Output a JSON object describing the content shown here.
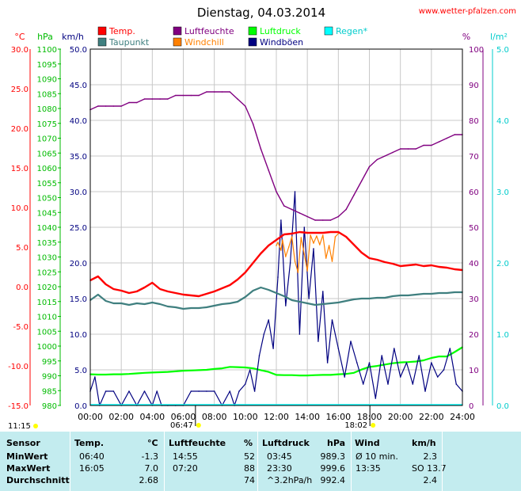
{
  "header": {
    "title": "Dienstag, 04.03.2014",
    "site": "www.wetter-pfalzen.com"
  },
  "colors": {
    "temp": "#ff0000",
    "humidity": "#800080",
    "pressure": "#00ff00",
    "rain": "#00ffff",
    "dewpoint": "#3f7f7f",
    "windchill": "#ff8000",
    "gusts": "#000080",
    "wind": "#000080",
    "sun_marker": "#ffff00"
  },
  "chart_data": {
    "type": "line",
    "title": "Dienstag, 04.03.2014",
    "xlim": [
      0,
      24
    ],
    "x_ticks": [
      "00:00",
      "02:00",
      "04:00",
      "06:00",
      "08:00",
      "10:00",
      "12:00",
      "14:00",
      "16:00",
      "18:00",
      "20:00",
      "22:00",
      "24:00"
    ],
    "grid": true,
    "axes": {
      "temp": {
        "unit": "°C",
        "range": [
          -15,
          30
        ],
        "ticks": [
          "30.0",
          "25.0",
          "20.0",
          "15.0",
          "10.0",
          "5.0",
          "0.0",
          "-5.0",
          "-10.0",
          "-15.0"
        ]
      },
      "pressure": {
        "unit": "hPa",
        "range": [
          980,
          1100
        ],
        "step": 5
      },
      "wind": {
        "unit": "km/h",
        "range": [
          0,
          50
        ],
        "ticks": [
          "50.0",
          "45.0",
          "40.0",
          "35.0",
          "30.0",
          "25.0",
          "20.0",
          "15.0",
          "10.0",
          "5.0",
          "0.0"
        ]
      },
      "humidity": {
        "unit": "%",
        "range": [
          0,
          100
        ],
        "ticks": [
          "100",
          "90",
          "80",
          "70",
          "60",
          "50",
          "40",
          "30",
          "20",
          "10",
          "0"
        ]
      },
      "rain": {
        "unit": "l/m²",
        "range": [
          0,
          5
        ],
        "ticks": [
          "5.0",
          "4.0",
          "3.0",
          "2.0",
          "1.0",
          "0.0"
        ]
      }
    },
    "legend": [
      {
        "key": "temp",
        "label": "Temp."
      },
      {
        "key": "humidity",
        "label": "Luftfeuchte"
      },
      {
        "key": "pressure",
        "label": "Luftdruck"
      },
      {
        "key": "rain",
        "label": "Regen*"
      },
      {
        "key": "dewpoint",
        "label": "Taupunkt"
      },
      {
        "key": "windchill",
        "label": "Windchill"
      },
      {
        "key": "gusts",
        "label": "Windböen"
      }
    ],
    "sun": {
      "sunrise": "06:47",
      "sunset": "18:02",
      "sunshine": "11:15"
    },
    "series": [
      {
        "name": "Temp.",
        "axis": "temp",
        "key": "temp",
        "x": [
          0,
          0.5,
          1,
          1.5,
          2,
          2.5,
          3,
          3.5,
          4,
          4.5,
          5,
          5.5,
          6,
          6.5,
          7,
          7.5,
          8,
          8.5,
          9,
          9.5,
          10,
          10.5,
          11,
          11.5,
          12,
          12.5,
          13,
          13.5,
          14,
          14.5,
          15,
          15.5,
          16,
          16.5,
          17,
          17.5,
          18,
          18.5,
          19,
          19.5,
          20,
          20.5,
          21,
          21.5,
          22,
          22.5,
          23,
          23.5,
          24
        ],
        "values": [
          0.8,
          1.3,
          0.3,
          -0.3,
          -0.5,
          -0.8,
          -0.6,
          -0.1,
          0.5,
          -0.3,
          -0.6,
          -0.8,
          -1.0,
          -1.1,
          -1.2,
          -0.9,
          -0.6,
          -0.2,
          0.2,
          0.9,
          1.8,
          3.0,
          4.2,
          5.2,
          5.9,
          6.6,
          6.7,
          6.9,
          6.8,
          6.8,
          6.8,
          6.9,
          6.9,
          6.3,
          5.3,
          4.3,
          3.6,
          3.4,
          3.1,
          2.9,
          2.6,
          2.7,
          2.8,
          2.6,
          2.7,
          2.5,
          2.4,
          2.2,
          2.1
        ]
      },
      {
        "name": "Taupunkt",
        "axis": "temp",
        "key": "dewpoint",
        "x": [
          0,
          0.5,
          1,
          1.5,
          2,
          2.5,
          3,
          3.5,
          4,
          4.5,
          5,
          5.5,
          6,
          6.5,
          7,
          7.5,
          8,
          8.5,
          9,
          9.5,
          10,
          10.5,
          11,
          11.5,
          12,
          12.5,
          13,
          13.5,
          14,
          14.5,
          15,
          15.5,
          16,
          16.5,
          17,
          17.5,
          18,
          18.5,
          19,
          19.5,
          20,
          20.5,
          21,
          21.5,
          22,
          22.5,
          23,
          23.5,
          24
        ],
        "values": [
          -1.7,
          -1.0,
          -1.8,
          -2.1,
          -2.1,
          -2.3,
          -2.1,
          -2.2,
          -2.0,
          -2.2,
          -2.5,
          -2.6,
          -2.8,
          -2.7,
          -2.7,
          -2.6,
          -2.4,
          -2.2,
          -2.1,
          -1.9,
          -1.3,
          -0.5,
          -0.1,
          -0.4,
          -0.8,
          -1.2,
          -1.7,
          -1.9,
          -2.1,
          -2.3,
          -2.2,
          -2.1,
          -2.0,
          -1.8,
          -1.6,
          -1.5,
          -1.5,
          -1.4,
          -1.4,
          -1.2,
          -1.1,
          -1.1,
          -1.0,
          -0.9,
          -0.9,
          -0.8,
          -0.8,
          -0.7,
          -0.7
        ]
      },
      {
        "name": "Windchill",
        "axis": "temp",
        "key": "windchill",
        "x": [
          12.0,
          12.1,
          12.3,
          12.4,
          12.6,
          12.8,
          13.0,
          13.2,
          13.4,
          13.6,
          13.8,
          14.0,
          14.2,
          14.4,
          14.6,
          14.8,
          15.0,
          15.2,
          15.4,
          15.6,
          15.8,
          16.0
        ],
        "values": [
          5.2,
          5.6,
          4.6,
          5.9,
          3.8,
          5.0,
          6.3,
          3.2,
          1.8,
          6.2,
          4.1,
          2.0,
          6.5,
          5.5,
          6.4,
          5.3,
          6.5,
          3.6,
          5.2,
          3.2,
          6.3,
          6.7
        ]
      },
      {
        "name": "Luftfeuchte",
        "axis": "humidity",
        "key": "humidity",
        "x": [
          0,
          0.5,
          1,
          1.5,
          2,
          2.5,
          3,
          3.5,
          4,
          4.5,
          5,
          5.5,
          6,
          6.5,
          7,
          7.5,
          8,
          8.5,
          9,
          9.5,
          10,
          10.5,
          11,
          11.5,
          12,
          12.5,
          13,
          13.5,
          14,
          14.5,
          15,
          15.5,
          16,
          16.5,
          17,
          17.5,
          18,
          18.5,
          19,
          19.5,
          20,
          20.5,
          21,
          21.5,
          22,
          22.5,
          23,
          23.5,
          24
        ],
        "values": [
          83,
          84,
          84,
          84,
          84,
          85,
          85,
          86,
          86,
          86,
          86,
          87,
          87,
          87,
          87,
          88,
          88,
          88,
          88,
          86,
          84,
          79,
          72,
          66,
          60,
          56,
          55,
          54,
          53,
          52,
          52,
          52,
          53,
          55,
          59,
          63,
          67,
          69,
          70,
          71,
          72,
          72,
          72,
          73,
          73,
          74,
          75,
          76,
          76
        ]
      },
      {
        "name": "Luftdruck",
        "axis": "pressure",
        "key": "pressure",
        "x": [
          0,
          0.5,
          1,
          1.5,
          2,
          2.5,
          3,
          3.5,
          4,
          4.5,
          5,
          5.5,
          6,
          6.5,
          7,
          7.5,
          8,
          8.5,
          9,
          9.5,
          10,
          10.5,
          11,
          11.5,
          12,
          12.5,
          13,
          13.5,
          14,
          14.5,
          15,
          15.5,
          16,
          16.5,
          17,
          17.5,
          18,
          18.5,
          19,
          19.5,
          20,
          20.5,
          21,
          21.5,
          22,
          22.5,
          23,
          23.5,
          24
        ],
        "values": [
          990.5,
          990.4,
          990.4,
          990.5,
          990.5,
          990.6,
          990.8,
          991.0,
          991.1,
          991.2,
          991.3,
          991.5,
          991.7,
          991.8,
          991.9,
          992.0,
          992.3,
          992.5,
          993.0,
          992.9,
          992.8,
          992.5,
          991.9,
          991.3,
          990.3,
          990.2,
          990.2,
          990.1,
          990.1,
          990.2,
          990.3,
          990.3,
          990.5,
          990.6,
          991.0,
          992.1,
          993.0,
          993.3,
          993.8,
          994.2,
          994.5,
          994.6,
          994.8,
          995.2,
          996.0,
          996.5,
          996.5,
          998.0,
          999.6
        ]
      },
      {
        "name": "Windböen",
        "axis": "wind",
        "key": "gusts",
        "x": [
          0,
          0.3,
          0.6,
          1,
          1.5,
          2,
          2.5,
          3,
          3.5,
          4,
          4.3,
          4.6,
          5,
          5.5,
          6,
          6.5,
          7,
          7.5,
          8,
          8.5,
          9,
          9.3,
          9.6,
          10,
          10.3,
          10.6,
          10.9,
          11.2,
          11.5,
          11.8,
          12.1,
          12.3,
          12.6,
          12.9,
          13.2,
          13.5,
          13.8,
          14.1,
          14.4,
          14.7,
          15,
          15.3,
          15.6,
          16,
          16.4,
          16.8,
          17.2,
          17.6,
          18,
          18.4,
          18.8,
          19.2,
          19.6,
          20,
          20.4,
          20.8,
          21.2,
          21.6,
          22,
          22.4,
          22.8,
          23.2,
          23.6,
          24
        ],
        "values": [
          2,
          4,
          0,
          2,
          2,
          0,
          2,
          0,
          2,
          0,
          2,
          0,
          0,
          0,
          0,
          2,
          2,
          2,
          2,
          0,
          2,
          0,
          2,
          3,
          5,
          2,
          7,
          10,
          12,
          8,
          18,
          26,
          14,
          20,
          30,
          10,
          25,
          15,
          22,
          9,
          16,
          6,
          12,
          8,
          4,
          9,
          6,
          3,
          6,
          1,
          7,
          3,
          8,
          4,
          6,
          3,
          7,
          2,
          6,
          4,
          5,
          8,
          3,
          2
        ]
      }
    ]
  },
  "table": {
    "headers": {
      "sensor": "Sensor",
      "temp": "Temp.",
      "temp_unit": "°C",
      "hum": "Luftfeuchte",
      "hum_unit": "%",
      "press": "Luftdruck",
      "press_unit": "hPa",
      "wind": "Wind",
      "wind_unit": "km/h"
    },
    "rows": [
      {
        "label": "MinWert",
        "t_time": "06:40",
        "t_val": "-1.3",
        "h_time": "14:55",
        "h_val": "52",
        "p_time": "03:45",
        "p_val": "989.3",
        "w_time": "Ø 10 min.",
        "w_val": "2.3"
      },
      {
        "label": "MaxWert",
        "t_time": "16:05",
        "t_val": "7.0",
        "h_time": "07:20",
        "h_val": "88",
        "p_time": "23:30",
        "p_val": "999.6",
        "w_time": "13:35",
        "w_val": "SO 13.7"
      },
      {
        "label": "Durchschnitt",
        "t_time": "",
        "t_val": "2.68",
        "h_time": "",
        "h_val": "74",
        "p_time": "^3.2hPa/h",
        "p_val": "992.4",
        "w_time": "",
        "w_val": "2.4"
      }
    ]
  }
}
